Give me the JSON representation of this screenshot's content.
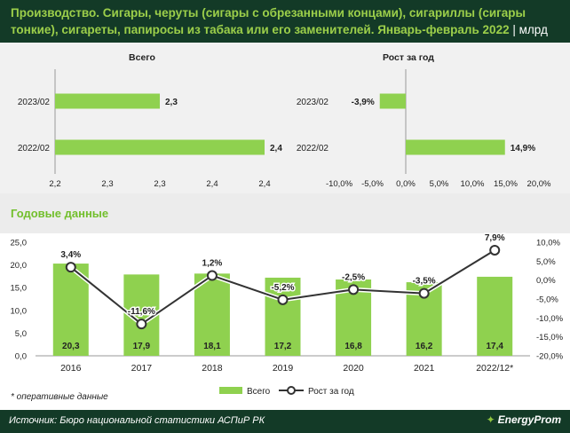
{
  "header": {
    "title": "Производство. Сигары, черуты (сигары с обрезанными концами), сигариллы (сигары тонкие), сигареты, папиросы из табака или его заменителей. Январь-февраль 2022",
    "unit": "млрд шт."
  },
  "section_title": "Годовые данные",
  "footnote": "* оперативные данные",
  "footer": {
    "source": "Источник: Бюро национальной статистики АСПиР РК",
    "brand": "EnergyProm"
  },
  "colors": {
    "bar": "#8fd14f",
    "line": "#ffffff",
    "line_stroke": "#333333",
    "header": "#133a27",
    "accent": "#9ccf4a"
  },
  "chart_data": [
    {
      "type": "bar",
      "orientation": "horizontal",
      "title": "Всего",
      "categories": [
        "2023/02",
        "2022/02"
      ],
      "values": [
        2.3,
        2.4
      ],
      "value_labels": [
        "2,3",
        "2,4"
      ],
      "xlim": [
        2.2,
        2.4
      ],
      "x_ticks": [
        "2,2",
        "2,3",
        "2,3",
        "2,4",
        "2,4"
      ]
    },
    {
      "type": "bar",
      "orientation": "horizontal",
      "title": "Рост за год",
      "categories": [
        "2023/02",
        "2022/02"
      ],
      "values": [
        -3.9,
        14.9
      ],
      "value_labels": [
        "-3,9%",
        "14,9%"
      ],
      "xlim": [
        -10,
        20
      ],
      "x_ticks": [
        "-10,0%",
        "-5,0%",
        "0,0%",
        "5,0%",
        "10,0%",
        "15,0%",
        "20,0%"
      ]
    },
    {
      "type": "bar+line",
      "categories": [
        "2016",
        "2017",
        "2018",
        "2019",
        "2020",
        "2021",
        "2022/12*"
      ],
      "series": [
        {
          "name": "Всего",
          "type": "bar",
          "axis": "left",
          "values": [
            20.3,
            17.9,
            18.1,
            17.2,
            16.8,
            16.2,
            17.4
          ],
          "labels": [
            "20,3",
            "17,9",
            "18,1",
            "17,2",
            "16,8",
            "16,2",
            "17,4"
          ]
        },
        {
          "name": "Рост за год",
          "type": "line",
          "axis": "right",
          "values": [
            3.4,
            -11.6,
            1.2,
            -5.2,
            -2.5,
            -3.5,
            7.9
          ],
          "labels": [
            "3,4%",
            "-11,6%",
            "1,2%",
            "-5,2%",
            "-2,5%",
            "-3,5%",
            "7,9%"
          ]
        }
      ],
      "y_left": {
        "lim": [
          0,
          25
        ],
        "ticks": [
          "0,0",
          "5,0",
          "10,0",
          "15,0",
          "20,0",
          "25,0"
        ]
      },
      "y_right": {
        "lim": [
          -20,
          10
        ],
        "ticks": [
          "-20,0%",
          "-15,0%",
          "-10,0%",
          "-5,0%",
          "0,0%",
          "5,0%",
          "10,0%"
        ]
      },
      "legend": {
        "placement": "bottom",
        "items": [
          "Всего",
          "Рост за год"
        ]
      }
    }
  ]
}
